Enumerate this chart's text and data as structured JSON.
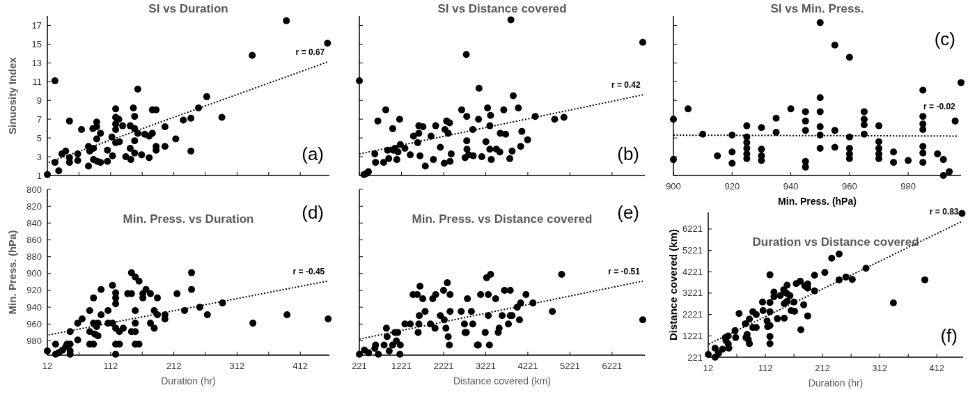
{
  "chart_data": [
    {
      "type": "scatter",
      "title": "SI vs Duration",
      "ylabel": "Sinuosity Index",
      "xlim": [
        12,
        458
      ],
      "ylim": [
        1,
        18
      ],
      "xticks": [
        12,
        {
          "value": 62,
          "label": null
        },
        112,
        {
          "value": 162,
          "label": null
        },
        212,
        {
          "value": 262,
          "label": null
        },
        312,
        {
          "value": 362,
          "label": null
        },
        412
      ],
      "yticks": [
        1,
        3,
        5,
        7,
        9,
        11,
        13,
        15,
        17
      ],
      "tick_labels": "y",
      "annotations": [
        {
          "text": "r = 0.67",
          "x": 455,
          "y": 13.1
        },
        "(a)"
      ],
      "series": [
        {
          "color": "#000000",
          "marker": "circle",
          "x": [
            12,
            24,
            24,
            30,
            35,
            41,
            47,
            47,
            47,
            60,
            60,
            66,
            77,
            77,
            79,
            84,
            85,
            85,
            90,
            90,
            90,
            91,
            96,
            96,
            107,
            107,
            114,
            115,
            120,
            120,
            120,
            120,
            120,
            125,
            126,
            131,
            136,
            143,
            143,
            144,
            148,
            150,
            150,
            150,
            150,
            155,
            155,
            161,
            166,
            173,
            173,
            178,
            178,
            184,
            184,
            184,
            198,
            198,
            215,
            227,
            239,
            239,
            251,
            264,
            288,
            336,
            390,
            455
          ],
          "values": [
            1.1,
            11.1,
            2.4,
            1.5,
            3.3,
            3.6,
            2.9,
            2.4,
            6.8,
            2.6,
            3.3,
            5.9,
            2.0,
            4.1,
            3.6,
            6.0,
            2.7,
            3.9,
            6.7,
            6.2,
            4.9,
            2.5,
            5.5,
            2.4,
            3.7,
            2.5,
            5.1,
            3.1,
            8.1,
            7.2,
            6.5,
            5.9,
            4.5,
            7.0,
            4.6,
            6.3,
            3.0,
            6.3,
            3.9,
            2.7,
            8.2,
            7.3,
            6.0,
            4.7,
            3.4,
            10.2,
            5.5,
            3.2,
            5.4,
            5.2,
            2.9,
            5.5,
            8.0,
            8.0,
            4.1,
            3.7,
            6.2,
            4.1,
            4.9,
            6.9,
            7.1,
            3.6,
            8.2,
            9.4,
            7.2,
            13.8,
            17.5,
            15.1
          ]
        },
        {
          "type": "line",
          "color": "#000000",
          "marker": "none",
          "line_style": "dotted",
          "x": [
            14,
            455
          ],
          "values": [
            2.4,
            13.1
          ]
        }
      ]
    },
    {
      "type": "scatter",
      "title": "SI vs Distance covered",
      "xlim": [
        221,
        7000
      ],
      "ylim": [
        1,
        18
      ],
      "xticks": [
        221,
        1221,
        2221,
        3221,
        4221,
        5221,
        6221
      ],
      "yticks": [
        1,
        3,
        5,
        7,
        9,
        11,
        13,
        15,
        17
      ],
      "tick_labels": false,
      "annotations": [
        {
          "text": "r = 0.42",
          "x": 6960,
          "y": 9.6
        },
        "(b)"
      ],
      "series": [
        {
          "color": "#000000",
          "marker": "circle",
          "x": [
            221,
            331,
            386,
            436,
            589,
            606,
            661,
            798,
            848,
            892,
            919,
            1012,
            1029,
            1067,
            1111,
            1139,
            1177,
            1193,
            1303,
            1430,
            1507,
            1606,
            1633,
            1633,
            1661,
            1732,
            1787,
            1924,
            1979,
            2034,
            2144,
            2237,
            2254,
            2293,
            2331,
            2364,
            2375,
            2402,
            2650,
            2732,
            2760,
            2771,
            2771,
            2776,
            2815,
            2914,
            2925,
            3051,
            3062,
            3128,
            3227,
            3265,
            3320,
            3320,
            3337,
            3353,
            3474,
            3557,
            3568,
            3650,
            3694,
            3793,
            3820,
            3848,
            3875,
            3996,
            4051,
            4079,
            4216,
            4397,
            4859,
            5079,
            6950
          ],
          "values": [
            11.1,
            1.1,
            1.2,
            1.4,
            3.3,
            2.4,
            6.8,
            2.4,
            8.0,
            3.7,
            2.8,
            6.0,
            3.7,
            3.9,
            2.7,
            3.5,
            7.0,
            4.3,
            3.9,
            3.2,
            5.2,
            4.5,
            5.5,
            6.3,
            3.1,
            6.2,
            2.0,
            5.2,
            2.7,
            6.3,
            4.0,
            2.3,
            5.9,
            6.8,
            5.5,
            6.6,
            2.5,
            3.3,
            8.0,
            2.9,
            13.9,
            7.3,
            4.7,
            3.8,
            3.2,
            5.9,
            3.1,
            7.0,
            10.3,
            3.0,
            4.6,
            8.2,
            6.3,
            3.8,
            7.4,
            2.7,
            3.8,
            3.5,
            5.5,
            8.0,
            5.4,
            2.8,
            17.6,
            3.6,
            9.5,
            8.2,
            4.1,
            5.7,
            4.8,
            7.3,
            7.0,
            7.2,
            15.2
          ]
        },
        {
          "type": "line",
          "color": "#000000",
          "marker": "none",
          "line_style": "dotted",
          "x": [
            221,
            6960
          ],
          "values": [
            3.3,
            9.6
          ]
        }
      ]
    },
    {
      "type": "scatter",
      "title": "SI vs Min. Press.",
      "xlabel": "Min. Press. (hPa)",
      "xlim": [
        900,
        998
      ],
      "ylim": [
        1,
        18
      ],
      "xticks": [
        900,
        920,
        940,
        960,
        980
      ],
      "yticks": [
        1,
        3,
        5,
        7,
        9,
        11,
        13,
        15,
        17
      ],
      "tick_labels": "x",
      "annotations": [
        {
          "text": "r = -0.02",
          "x": 997,
          "y": 5.2
        },
        "(c)"
      ],
      "series": [
        {
          "color": "#000000",
          "marker": "circle",
          "x": [
            900,
            900,
            905,
            910,
            915,
            920,
            920,
            920,
            925,
            925,
            925,
            925,
            925,
            925,
            930,
            930,
            930,
            930,
            935,
            935,
            940,
            945,
            945,
            945,
            945,
            945,
            950,
            950,
            950,
            950,
            950,
            950,
            955,
            955,
            955,
            960,
            960,
            960,
            960,
            960,
            965,
            965,
            965,
            965,
            970,
            970,
            970,
            970,
            970,
            975,
            975,
            980,
            985,
            985,
            985,
            985,
            985,
            985,
            985,
            990,
            992,
            992,
            994,
            996,
            998
          ],
          "values": [
            7.0,
            2.7,
            8.1,
            5.4,
            3.1,
            5.3,
            3.5,
            2.3,
            6.3,
            5.1,
            4.5,
            3.9,
            3.3,
            2.8,
            6.1,
            3.8,
            3.1,
            2.6,
            7.1,
            5.6,
            8.1,
            7.8,
            6.8,
            5.8,
            2.5,
            1.9,
            17.3,
            9.3,
            7.8,
            6.2,
            5.3,
            3.9,
            14.9,
            5.8,
            4.0,
            13.6,
            5.1,
            3.9,
            3.3,
            2.8,
            7.8,
            7.0,
            6.4,
            5.4,
            6.3,
            4.6,
            3.9,
            3.3,
            2.8,
            3.5,
            2.4,
            2.6,
            10.1,
            7.3,
            6.5,
            5.9,
            4.1,
            3.4,
            2.4,
            3.3,
            2.7,
            1.0,
            1.4,
            6.8,
            10.9
          ]
        },
        {
          "type": "line",
          "color": "#000000",
          "marker": "none",
          "line_style": "dotted",
          "x": [
            900,
            997
          ],
          "values": [
            5.3,
            5.2
          ]
        }
      ]
    },
    {
      "type": "scatter",
      "title": "Min. Press. vs Duration",
      "xlabel": "Duration (hr)",
      "ylabel": "Min. Press. (hPa)",
      "xlim": [
        12,
        458
      ],
      "ylim": [
        997,
        800
      ],
      "xticks": [
        12,
        {
          "value": 62,
          "label": null
        },
        112,
        {
          "value": 162,
          "label": null
        },
        212,
        {
          "value": 262,
          "label": null
        },
        312,
        {
          "value": 362,
          "label": null
        },
        412
      ],
      "yticks": [
        800,
        820,
        840,
        860,
        880,
        900,
        920,
        940,
        960,
        980
      ],
      "annotations": [
        {
          "text": "r = -0.45",
          "x": 455,
          "y": 909
        },
        "(d)"
      ],
      "series": [
        {
          "color": "#000000",
          "marker": "circle",
          "x": [
            12,
            25,
            25,
            30,
            36,
            41,
            43,
            48,
            48,
            48,
            48,
            60,
            60,
            67,
            79,
            79,
            79,
            85,
            85,
            85,
            87,
            90,
            92,
            92,
            97,
            97,
            108,
            108,
            115,
            115,
            120,
            120,
            120,
            120,
            120,
            120,
            126,
            126,
            132,
            139,
            145,
            145,
            145,
            151,
            151,
            151,
            151,
            151,
            157,
            157,
            163,
            163,
            168,
            175,
            175,
            181,
            181,
            186,
            186,
            198,
            198,
            217,
            229,
            240,
            240,
            253,
            265,
            289,
            337,
            391,
            456
          ],
          "values": [
            992,
            984,
            996,
            994,
            991,
            987,
            984,
            984,
            992,
            996,
            969,
            979,
            959,
            954,
            944,
            969,
            984,
            929,
            959,
            984,
            972,
            963,
            974,
            959,
            919,
            949,
            944,
            959,
            914,
            959,
            923,
            929,
            936,
            965,
            984,
            996,
            969,
            984,
            965,
            924,
            924,
            899,
            969,
            904,
            944,
            959,
            969,
            984,
            909,
            984,
            924,
            929,
            919,
            924,
            959,
            944,
            965,
            929,
            949,
            949,
            954,
            924,
            944,
            899,
            919,
            940,
            949,
            935,
            959,
            949,
            954
          ]
        },
        {
          "type": "line",
          "color": "#000000",
          "marker": "none",
          "line_style": "dotted",
          "x": [
            14,
            455
          ],
          "values": [
            973,
            909
          ]
        }
      ]
    },
    {
      "type": "scatter",
      "title": "Min. Press. vs Distance covered",
      "xlabel": "Distance covered (km)",
      "xlim": [
        221,
        7000
      ],
      "ylim": [
        997,
        800
      ],
      "xticks": [
        221,
        1221,
        2221,
        3221,
        4221,
        5221,
        6221
      ],
      "yticks": [
        800,
        820,
        840,
        860,
        880,
        900,
        920,
        940,
        960,
        980
      ],
      "tick_labels": "x",
      "annotations": [
        {
          "text": "r = -0.51",
          "x": 6950,
          "y": 909
        },
        "(e)"
      ],
      "series": [
        {
          "color": "#000000",
          "marker": "circle",
          "x": [
            221,
            342,
            440,
            589,
            606,
            672,
            809,
            864,
            881,
            930,
            1012,
            1067,
            1100,
            1133,
            1183,
            1193,
            1303,
            1430,
            1496,
            1595,
            1617,
            1633,
            1644,
            1661,
            1727,
            1782,
            1908,
            1963,
            2018,
            2034,
            2144,
            2221,
            2237,
            2276,
            2309,
            2331,
            2358,
            2375,
            2375,
            2639,
            2716,
            2732,
            2760,
            2787,
            2881,
            2914,
            3023,
            3045,
            3100,
            3210,
            3243,
            3282,
            3282,
            3309,
            3337,
            3458,
            3518,
            3540,
            3612,
            3667,
            3760,
            3804,
            3804,
            3848,
            3969,
            4024,
            4051,
            4177,
            4342,
            4804,
            5024,
            6950
          ],
          "values": [
            996,
            991,
            994,
            989,
            985,
            996,
            985,
            965,
            975,
            992,
            985,
            970,
            980,
            970,
            996,
            985,
            960,
            960,
            925,
            925,
            970,
            960,
            950,
            915,
            930,
            945,
            960,
            930,
            965,
            925,
            950,
            920,
            955,
            965,
            911,
            975,
            985,
            925,
            945,
            945,
            960,
            970,
            970,
            930,
            945,
            960,
            985,
            985,
            925,
            970,
            905,
            925,
            950,
            985,
            901,
            930,
            970,
            965,
            950,
            920,
            960,
            920,
            950,
            950,
            940,
            955,
            935,
            925,
            935,
            945,
            901,
            955
          ]
        },
        {
          "type": "line",
          "color": "#000000",
          "marker": "none",
          "line_style": "dotted",
          "x": [
            221,
            6950
          ],
          "values": [
            978,
            909
          ]
        }
      ]
    },
    {
      "type": "scatter",
      "title": "Duration vs Distance covered",
      "xlabel": "Duration (hr)",
      "ylabel": "Distance covered (km)",
      "xlim": [
        12,
        458
      ],
      "ylim": [
        221,
        7000
      ],
      "xticks": [
        12,
        {
          "value": 62,
          "label": null
        },
        112,
        {
          "value": 162,
          "label": null
        },
        212,
        {
          "value": 262,
          "label": null
        },
        312,
        {
          "value": 362,
          "label": null
        },
        412
      ],
      "yticks": [
        221,
        1221,
        2221,
        3221,
        4221,
        5221,
        6221
      ],
      "annotations": [
        {
          "text": "r = 0.83",
          "x": 455,
          "y": 6567
        },
        "(f)"
      ],
      "series": [
        {
          "color": "#000000",
          "marker": "circle",
          "x": [
            12,
            24,
            24,
            30,
            37,
            42,
            43,
            47,
            47,
            48,
            59,
            60,
            66,
            77,
            78,
            80,
            82,
            84,
            84,
            90,
            90,
            96,
            96,
            107,
            108,
            115,
            116,
            120,
            120,
            120,
            120,
            120,
            120,
            127,
            127,
            133,
            138,
            144,
            145,
            145,
            149,
            150,
            150,
            155,
            157,
            162,
            163,
            166,
            173,
            174,
            179,
            181,
            186,
            186,
            186,
            198,
            198,
            216,
            228,
            241,
            241,
            253,
            264,
            288,
            336,
            391,
            456
          ],
          "values": [
            351,
            221,
            643,
            405,
            599,
            1140,
            1000,
            1216,
            837,
            643,
            1464,
            1140,
            2264,
            1789,
            1140,
            1291,
            1053,
            2005,
            859,
            2351,
            1616,
            2221,
            1616,
            2805,
            2405,
            1918,
            1648,
            4080,
            2783,
            2351,
            1702,
            1194,
            859,
            3270,
            3053,
            2026,
            3107,
            3378,
            2729,
            2048,
            3215,
            3594,
            2837,
            3107,
            2405,
            2805,
            2372,
            3670,
            3778,
            1508,
            2675,
            3561,
            2156,
            3648,
            3453,
            4059,
            3323,
            4188,
            4858,
            5053,
            3842,
            3972,
            3864,
            4383,
            2761,
            3842,
            6950
          ]
        },
        {
          "type": "line",
          "color": "#000000",
          "marker": "none",
          "line_style": "dotted",
          "x": [
            13,
            455
          ],
          "values": [
            837,
            6567
          ]
        }
      ]
    }
  ]
}
